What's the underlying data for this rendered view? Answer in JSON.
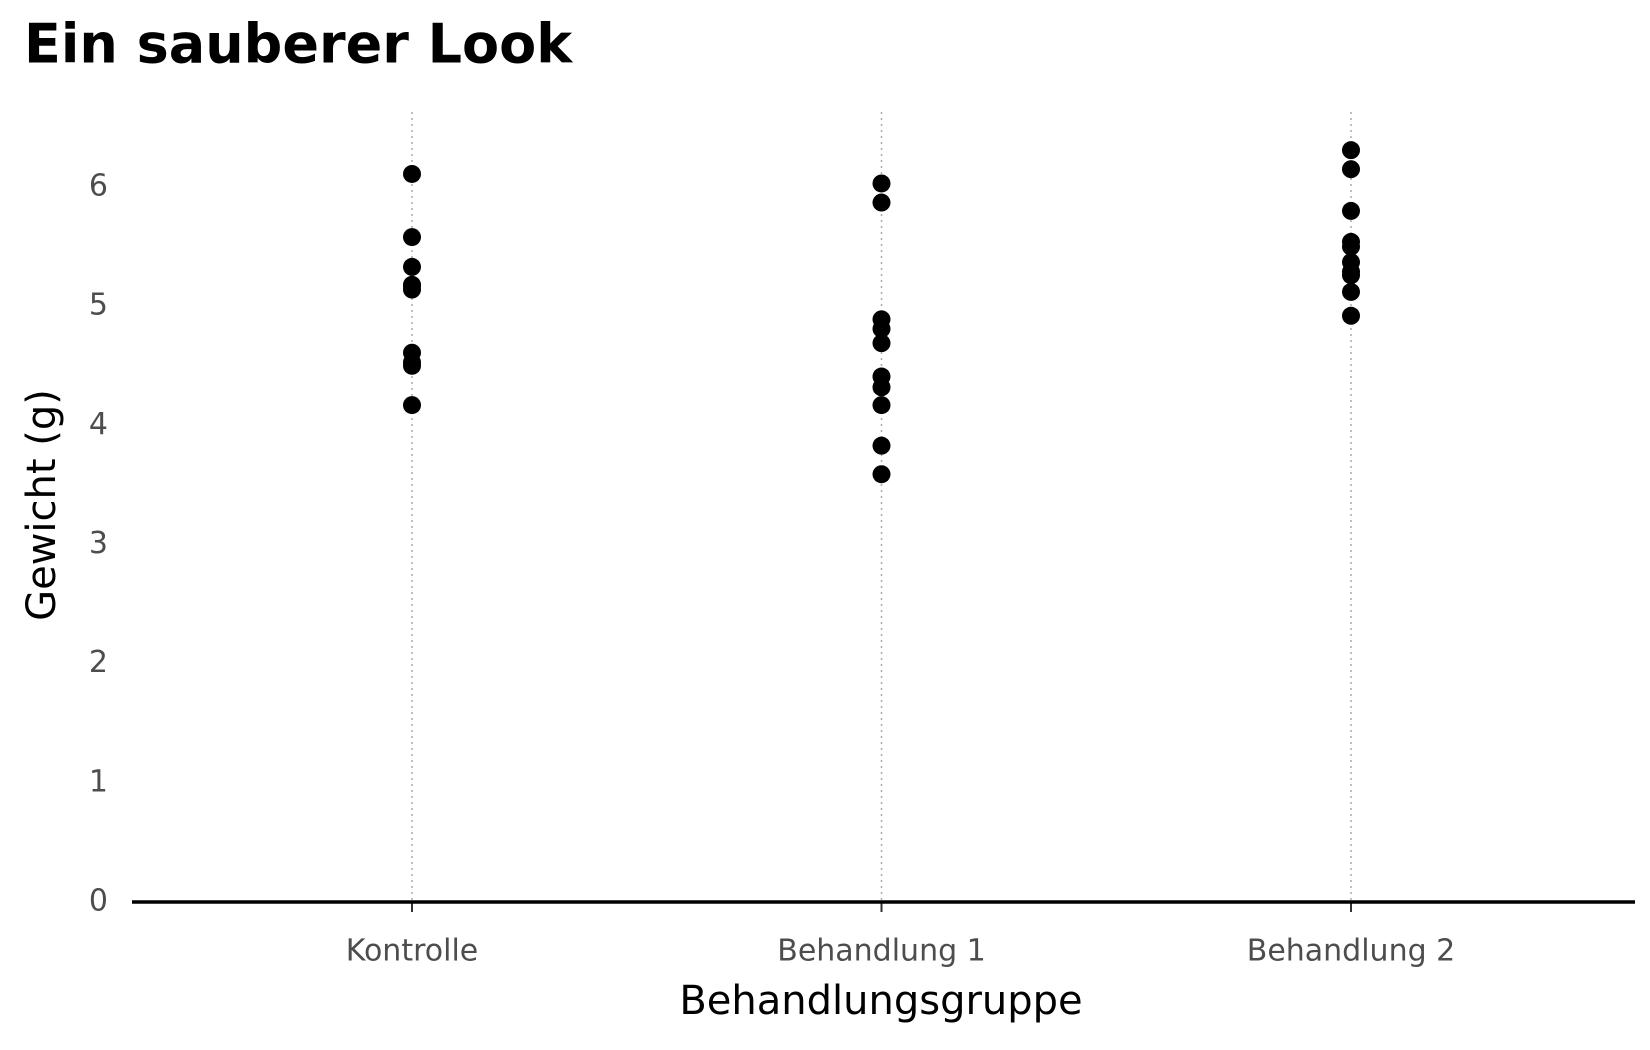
{
  "chart_data": {
    "type": "strip",
    "title": "Ein sauberer Look",
    "x_label": "Behandlungsgruppe",
    "y_label": "Gewicht (g)",
    "categories": [
      "Kontrolle",
      "Behandlung 1",
      "Behandlung 2"
    ],
    "values": [
      [
        4.17,
        5.58,
        5.18,
        6.11,
        4.5,
        4.61,
        5.17,
        4.53,
        5.33,
        5.14
      ],
      [
        4.81,
        4.17,
        4.41,
        3.59,
        5.87,
        3.83,
        6.03,
        4.89,
        4.32,
        4.69
      ],
      [
        6.31,
        5.12,
        5.54,
        5.5,
        5.37,
        5.29,
        4.92,
        6.15,
        5.8,
        5.26
      ]
    ],
    "color": "#000000",
    "ylim": [
      0,
      6.63
    ],
    "yticks": [
      0,
      1,
      2,
      3,
      4,
      5,
      6
    ],
    "grid": true
  }
}
